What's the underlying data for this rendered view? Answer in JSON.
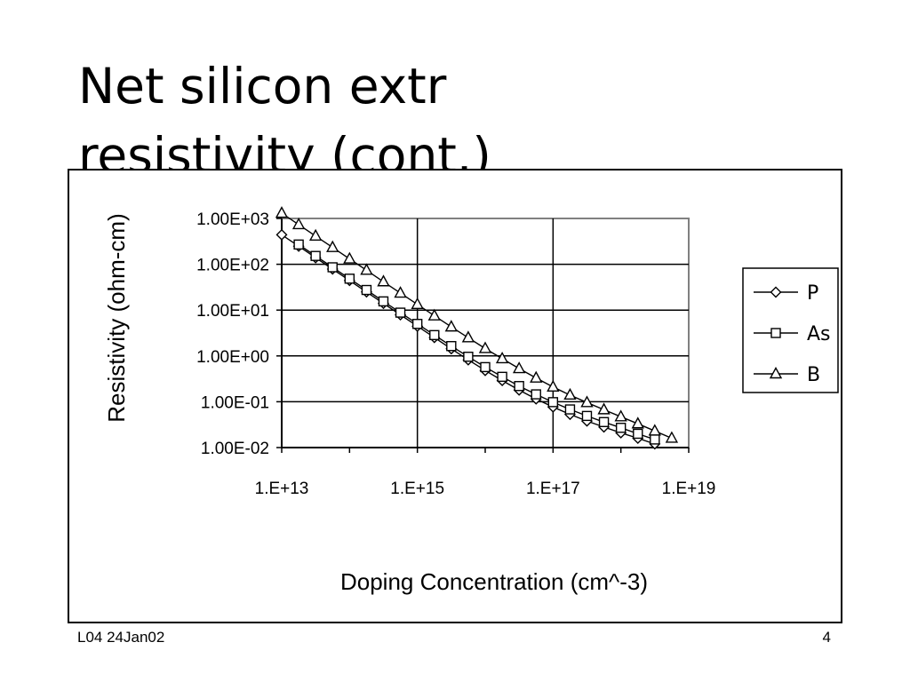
{
  "slide": {
    "title": "Net silicon extr\nresistivity (cont.)",
    "footer_left": "L04 24Jan02",
    "page_number": "4"
  },
  "chart_data": {
    "type": "line",
    "title": "",
    "xlabel": "Doping Concentration (cm^-3)",
    "ylabel": "Resistivity (ohm-cm)",
    "x_scale": "log",
    "y_scale": "log",
    "xlim": [
      10000000000000.0,
      1e+19
    ],
    "ylim": [
      0.01,
      1000
    ],
    "x_ticks": [
      "1.E+13",
      "1.E+15",
      "1.E+17",
      "1.E+19"
    ],
    "y_ticks": [
      "1.00E+03",
      "1.00E+02",
      "1.00E+01",
      "1.00E+00",
      "1.00E-01",
      "1.00E-02"
    ],
    "grid": true,
    "legend_position": "right",
    "series": [
      {
        "name": "P",
        "marker": "diamond",
        "x": [
          10000000000000.0,
          17800000000000.0,
          31600000000000.0,
          56200000000000.0,
          100000000000000.0,
          178000000000000.0,
          316000000000000.0,
          562000000000000.0,
          1000000000000000.0,
          1780000000000000.0,
          3160000000000000.0,
          5620000000000000.0,
          1e+16,
          1.78e+16,
          3.16e+16,
          5.62e+16,
          1e+17,
          1.78e+17,
          3.16e+17,
          5.62e+17,
          1e+18,
          1.78e+18,
          3.16e+18
        ],
        "y": [
          440,
          248,
          139,
          78.5,
          44.2,
          24.9,
          14.0,
          7.9,
          4.45,
          2.52,
          1.43,
          0.82,
          0.48,
          0.29,
          0.18,
          0.115,
          0.077,
          0.053,
          0.038,
          0.028,
          0.021,
          0.016,
          0.012
        ]
      },
      {
        "name": "As",
        "marker": "square",
        "x": [
          17800000000000.0,
          31600000000000.0,
          56200000000000.0,
          100000000000000.0,
          178000000000000.0,
          316000000000000.0,
          562000000000000.0,
          1000000000000000.0,
          1780000000000000.0,
          3160000000000000.0,
          5620000000000000.0,
          1e+16,
          1.78e+16,
          3.16e+16,
          5.62e+16,
          1e+17,
          1.78e+17,
          3.16e+17,
          5.62e+17,
          1e+18,
          1.78e+18,
          3.16e+18
        ],
        "y": [
          270,
          152,
          86,
          48.5,
          27.5,
          15.5,
          8.8,
          5.0,
          2.85,
          1.64,
          0.96,
          0.57,
          0.35,
          0.22,
          0.145,
          0.098,
          0.068,
          0.049,
          0.036,
          0.027,
          0.02,
          0.015
        ]
      },
      {
        "name": "B",
        "marker": "triangle",
        "x": [
          10000000000000.0,
          17800000000000.0,
          31600000000000.0,
          56200000000000.0,
          100000000000000.0,
          178000000000000.0,
          316000000000000.0,
          562000000000000.0,
          1000000000000000.0,
          1780000000000000.0,
          3160000000000000.0,
          5620000000000000.0,
          1e+16,
          1.78e+16,
          3.16e+16,
          5.62e+16,
          1e+17,
          1.78e+17,
          3.16e+17,
          5.62e+17,
          1e+18,
          1.78e+18,
          3.16e+18,
          5.62e+18
        ],
        "y": [
          1300,
          735,
          414,
          233,
          131,
          74,
          41.6,
          23.5,
          13.3,
          7.5,
          4.3,
          2.5,
          1.45,
          0.87,
          0.53,
          0.33,
          0.21,
          0.14,
          0.096,
          0.067,
          0.047,
          0.033,
          0.023,
          0.016
        ]
      }
    ]
  },
  "colors": {
    "plot_background": "#ffffff",
    "plot_border": "#808080",
    "gridline": "#000000",
    "series_line": "#000000",
    "text": "#000000"
  }
}
